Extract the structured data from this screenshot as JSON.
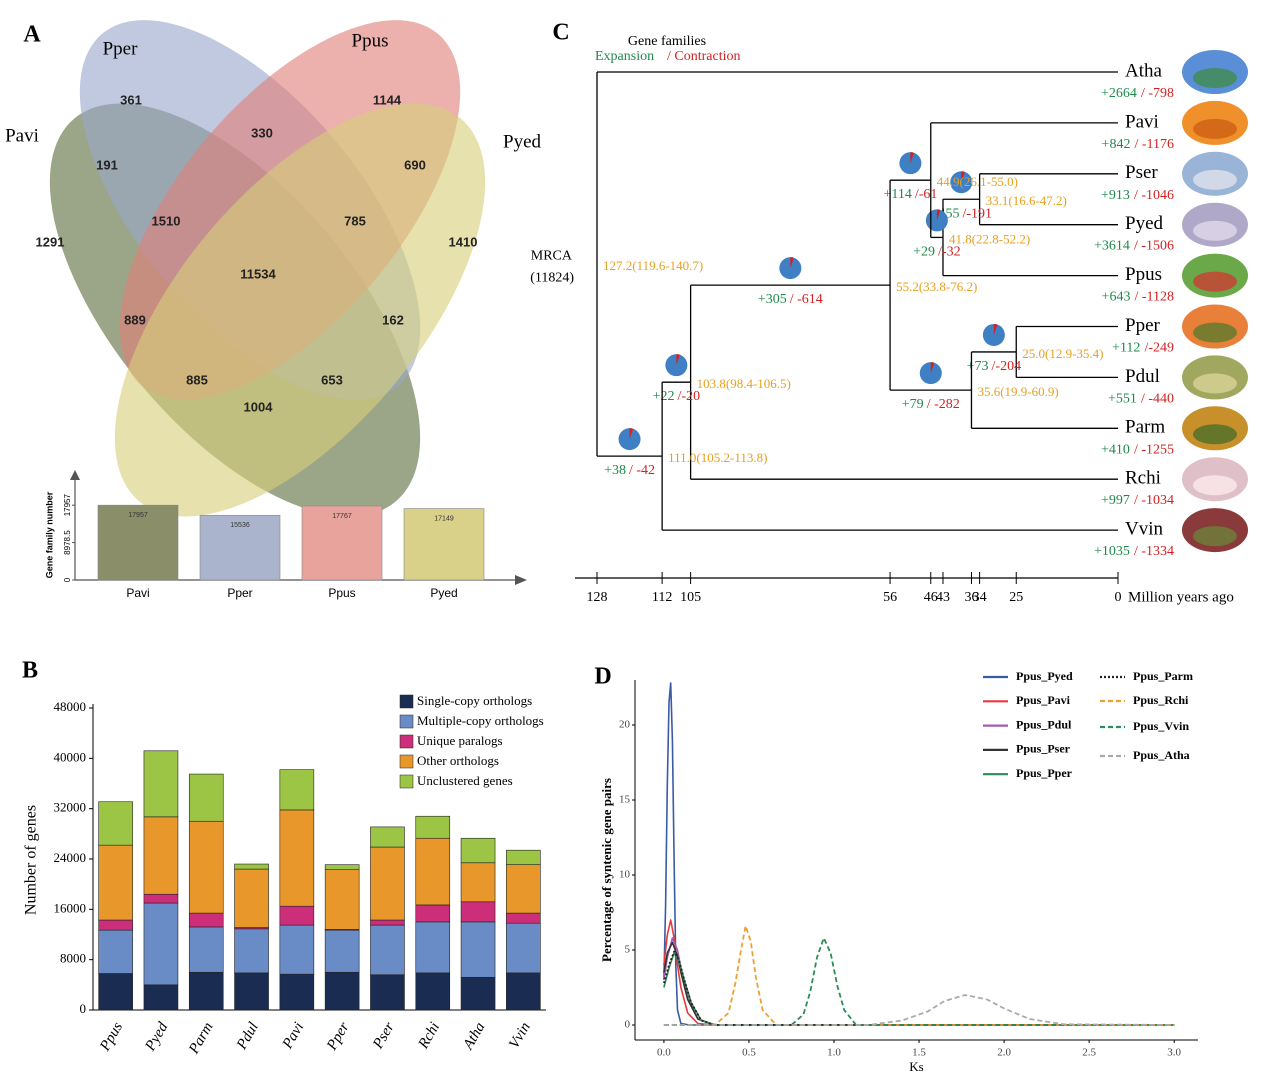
{
  "chart_data": [
    {
      "type": "venn",
      "panel": "A",
      "sets": [
        {
          "name": "Pavi",
          "color": "#5e6e3e"
        },
        {
          "name": "Pper",
          "color": "#9aa8cc"
        },
        {
          "name": "Ppus",
          "color": "#e0807a"
        },
        {
          "name": "Pyed",
          "color": "#d6cf7a"
        }
      ],
      "values": [
        361,
        1144,
        1291,
        1410,
        191,
        330,
        690,
        1510,
        785,
        11534,
        889,
        162,
        885,
        653,
        1004
      ]
    },
    {
      "type": "bar",
      "y_label": "Gene family number",
      "categories": [
        "Pavi",
        "Pper",
        "Ppus",
        "Pyed"
      ],
      "values": [
        17957,
        15536,
        17767,
        17149
      ],
      "colors": [
        "#8a8f6a",
        "#aab4cc",
        "#e8a49c",
        "#d9d08a"
      ],
      "ylim": [
        0,
        24000
      ],
      "yticks": [
        0,
        8978.5,
        17957
      ]
    },
    {
      "type": "stacked_bar",
      "panel": "B",
      "y_label": "Number of genes",
      "categories": [
        "Ppus",
        "Pyed",
        "Parm",
        "Pdul",
        "Pavi",
        "Pper",
        "Pser",
        "Rchi",
        "Atha",
        "Vvin"
      ],
      "series": [
        {
          "name": "Single-copy orthologs",
          "color": "#1a2c52",
          "values": [
            5800,
            4000,
            6000,
            5900,
            5700,
            6000,
            5600,
            5900,
            5200,
            5900
          ]
        },
        {
          "name": "Multiple-copy orthologs",
          "color": "#6a8cc6",
          "values": [
            6900,
            13000,
            7200,
            7000,
            7800,
            6700,
            7900,
            8100,
            8800,
            7900
          ]
        },
        {
          "name": "Unique paralogs",
          "color": "#cc2e7a",
          "values": [
            1600,
            1400,
            2200,
            200,
            3000,
            100,
            800,
            2700,
            3200,
            1600
          ]
        },
        {
          "name": "Other orthologs",
          "color": "#e8972a",
          "values": [
            11900,
            12300,
            14600,
            9300,
            15300,
            9500,
            11600,
            10600,
            6200,
            7700
          ]
        },
        {
          "name": "Unclustered genes",
          "color": "#9cc445",
          "values": [
            6900,
            10500,
            7500,
            800,
            6400,
            800,
            3200,
            3500,
            3900,
            2300
          ]
        }
      ],
      "ylim": [
        0,
        48000
      ],
      "yticks": [
        0,
        8000,
        16000,
        24000,
        32000,
        40000,
        48000
      ]
    },
    {
      "type": "tree",
      "panel": "C",
      "header": {
        "title": "Gene families",
        "expansion": "Expansion",
        "contraction": "/ Contraction"
      },
      "x_label": "Million years ago",
      "xlim": [
        128,
        0
      ],
      "xticks": [
        128,
        112,
        105,
        56,
        46,
        43,
        36,
        34,
        25,
        0
      ],
      "tree": {
        "age": 128,
        "date": "127.2(119.6-140.7)",
        "name": "MRCA",
        "size": "(11824)",
        "children": [
          {
            "name": "Atha",
            "expansion": "+2664",
            "contraction": "/ -798"
          },
          {
            "age": 112,
            "date": "111.0(105.2-113.8)",
            "expansion": "+38",
            "contraction": "/ -42",
            "children": [
              {
                "age": 105,
                "date": "103.8(98.4-106.5)",
                "expansion": "+22",
                "contraction": "/-20",
                "children": [
                  {
                    "age": 56,
                    "date": "55.2(33.8-76.2)",
                    "expansion": "+305",
                    "contraction": "/ -614",
                    "children": [
                      {
                        "age": 46,
                        "date": "44.9(26.1-55.0)",
                        "expansion": "+114",
                        "contraction": "/-61",
                        "children": [
                          {
                            "name": "Pavi",
                            "expansion": "+842",
                            "contraction": "/ -1176"
                          },
                          {
                            "age": 43,
                            "date": "41.8(22.8-52.2)",
                            "expansion": "+29",
                            "contraction": "/-32",
                            "children": [
                              {
                                "age": 34,
                                "date": "33.1(16.6-47.2)",
                                "expansion": "+455",
                                "contraction": "/-191",
                                "children": [
                                  {
                                    "name": "Pser",
                                    "expansion": "+913",
                                    "contraction": "/ -1046"
                                  },
                                  {
                                    "name": "Pyed",
                                    "expansion": "+3614",
                                    "contraction": "/ -1506"
                                  }
                                ]
                              },
                              {
                                "name": "Ppus",
                                "expansion": "+643",
                                "contraction": "/ -1128"
                              }
                            ]
                          }
                        ]
                      },
                      {
                        "age": 36,
                        "date": "35.6(19.9-60.9)",
                        "expansion": "+79",
                        "contraction": "/ -282",
                        "children": [
                          {
                            "age": 25,
                            "date": "25.0(12.9-35.4)",
                            "expansion": "+73",
                            "contraction": "/-204",
                            "children": [
                              {
                                "name": "Pper",
                                "expansion": "+112",
                                "contraction": "/-249"
                              },
                              {
                                "name": "Pdul",
                                "expansion": "+551",
                                "contraction": "/ -440"
                              }
                            ]
                          },
                          {
                            "name": "Parm",
                            "expansion": "+410",
                            "contraction": "/ -1255"
                          }
                        ]
                      }
                    ]
                  },
                  {
                    "name": "Rchi",
                    "expansion": "+997",
                    "contraction": "/ -1034"
                  }
                ]
              },
              {
                "name": "Vvin",
                "expansion": "+1035",
                "contraction": "/ -1334"
              }
            ]
          }
        ]
      }
    },
    {
      "type": "line",
      "panel": "D",
      "x_label": "Ks",
      "y_label": "Percentage of syntenic gene pairs",
      "xlim": [
        -0.17,
        3.14
      ],
      "ylim": [
        -1,
        23
      ],
      "xticks": [
        {
          "value": 0,
          "label": "0.0"
        },
        0.5,
        {
          "value": 1,
          "label": "1.0"
        },
        1.5,
        {
          "value": 2,
          "label": "2.0"
        },
        2.5,
        {
          "value": 3,
          "label": "3.0"
        }
      ],
      "yticks": [
        0,
        5,
        10,
        15,
        20
      ],
      "series": [
        {
          "name": "Ppus_Pyed",
          "color": "#3b5ba5",
          "dash": "solid",
          "x": [
            0,
            0.01,
            0.02,
            0.03,
            0.04,
            0.05,
            0.06,
            0.07,
            0.08,
            0.1,
            0.15,
            3.0
          ],
          "values": [
            3,
            8,
            16,
            21.5,
            22.8,
            19,
            11,
            4,
            1,
            0.1,
            0,
            0
          ]
        },
        {
          "name": "Ppus_Pavi",
          "color": "#e63a3f",
          "dash": "solid",
          "x": [
            0,
            0.02,
            0.04,
            0.06,
            0.08,
            0.1,
            0.14,
            0.2,
            0.3,
            3.0
          ],
          "values": [
            4,
            6,
            7,
            5.8,
            4,
            2.5,
            0.8,
            0.1,
            0,
            0
          ]
        },
        {
          "name": "Ppus_Pdul",
          "color": "#a35bb5",
          "dash": "solid",
          "x": [
            0,
            0.02,
            0.05,
            0.08,
            0.1,
            0.14,
            0.2,
            0.3,
            3.0
          ],
          "values": [
            3,
            4.5,
            5.8,
            5,
            3.8,
            1.8,
            0.4,
            0,
            0
          ]
        },
        {
          "name": "Ppus_Pser",
          "color": "#333333",
          "dash": "solid",
          "x": [
            0,
            0.02,
            0.05,
            0.08,
            0.1,
            0.14,
            0.2,
            0.3,
            3.0
          ],
          "values": [
            3.5,
            4.8,
            5.5,
            4.6,
            3.5,
            1.7,
            0.4,
            0,
            0
          ]
        },
        {
          "name": "Ppus_Pper",
          "color": "#2e8a57",
          "dash": "solid",
          "x": [
            0,
            0.03,
            0.06,
            0.09,
            0.12,
            0.16,
            0.22,
            0.3,
            3.0
          ],
          "values": [
            2.5,
            3.8,
            4.8,
            4.2,
            3,
            1.5,
            0.3,
            0,
            0
          ]
        },
        {
          "name": "Ppus_Parm",
          "color": "#222222",
          "dash": "dotted",
          "x": [
            0,
            0.03,
            0.06,
            0.09,
            0.12,
            0.16,
            0.22,
            0.3,
            3.0
          ],
          "values": [
            2.8,
            4,
            4.9,
            4.3,
            3,
            1.5,
            0.3,
            0,
            0
          ]
        },
        {
          "name": "Ppus_Rchi",
          "color": "#f0a030",
          "dash": "dashed",
          "x": [
            0,
            0.3,
            0.38,
            0.42,
            0.45,
            0.48,
            0.51,
            0.54,
            0.58,
            0.66,
            3.0
          ],
          "values": [
            0,
            0,
            0.8,
            2.8,
            4.8,
            6.6,
            5.6,
            3.2,
            1,
            0,
            0
          ]
        },
        {
          "name": "Ppus_Vvin",
          "color": "#2e8a57",
          "dash": "dashed",
          "x": [
            0,
            0.75,
            0.82,
            0.86,
            0.9,
            0.94,
            0.98,
            1.02,
            1.06,
            1.13,
            3.0
          ],
          "values": [
            0,
            0,
            0.7,
            2.2,
            4.5,
            5.8,
            4.8,
            2.6,
            1,
            0,
            0
          ]
        },
        {
          "name": "Ppus_Atha",
          "color": "#aaaaaa",
          "dash": "dashed",
          "x": [
            0,
            1.2,
            1.4,
            1.55,
            1.65,
            1.77,
            1.9,
            2.0,
            2.15,
            2.35,
            3.0
          ],
          "values": [
            0,
            0,
            0.3,
            0.9,
            1.6,
            2.0,
            1.7,
            1.1,
            0.4,
            0.05,
            0
          ]
        }
      ]
    }
  ]
}
